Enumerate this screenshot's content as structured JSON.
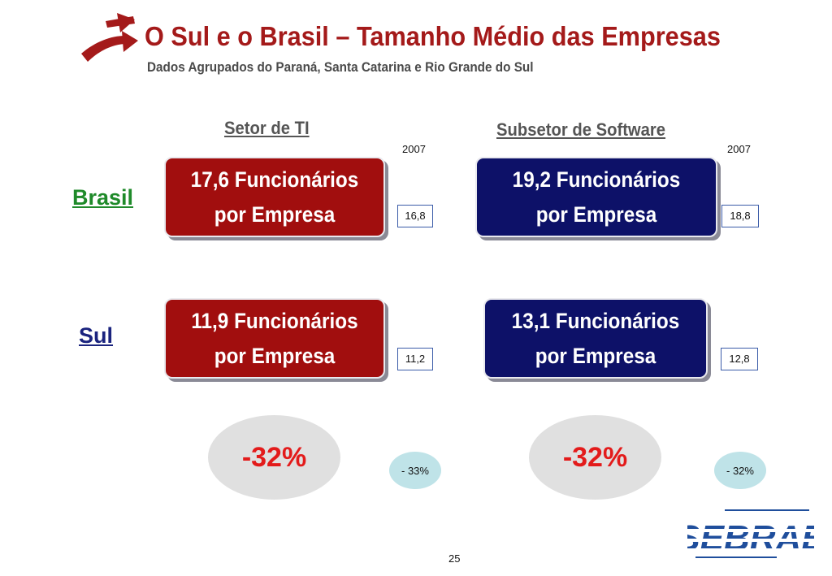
{
  "header": {
    "title": "O Sul e o Brasil – Tamanho Médio das Empresas",
    "subtitle": "Dados Agrupados do Paraná, Santa Catarina e Rio Grande do Sul"
  },
  "columns": {
    "ti": {
      "heading": "Setor de TI",
      "year": "2007"
    },
    "software": {
      "heading": "Subsetor de Software",
      "year": "2007"
    }
  },
  "rows": {
    "brasil": "Brasil",
    "sul": "Sul"
  },
  "metrics": {
    "ti_brasil": {
      "line1": "17,6 Funcionários",
      "line2": "por Empresa",
      "comparison": "16,8"
    },
    "sw_brasil": {
      "line1": "19,2 Funcionários",
      "line2": "por Empresa",
      "comparison": "18,8"
    },
    "ti_sul": {
      "line1": "11,9 Funcionários",
      "line2": "por Empresa",
      "comparison": "11,2"
    },
    "sw_sul": {
      "line1": "13,1 Funcionários",
      "line2": "por Empresa",
      "comparison": "12,8"
    }
  },
  "differences": {
    "ti": {
      "main": "-32%",
      "previous": "- 33%"
    },
    "software": {
      "main": "-32%",
      "previous": "- 32%"
    }
  },
  "footer": {
    "logo_text": "SEBRAE",
    "page_number": "25"
  },
  "colors": {
    "title_red": "#a41a1a",
    "box_red": "#a10e0e",
    "box_navy": "#0d1168",
    "brasil_green": "#1f8a2a",
    "sul_navy": "#1a237e",
    "percent_red": "#e31b1b",
    "sebrae_blue": "#1f4e9c"
  }
}
